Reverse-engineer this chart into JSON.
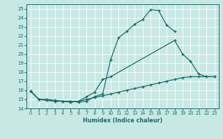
{
  "xlabel": "Humidex (Indice chaleur)",
  "xlim": [
    -0.5,
    23.5
  ],
  "ylim": [
    14.0,
    25.5
  ],
  "xticks": [
    0,
    1,
    2,
    3,
    4,
    5,
    6,
    7,
    8,
    9,
    10,
    11,
    12,
    13,
    14,
    15,
    16,
    17,
    18,
    19,
    20,
    21,
    22,
    23
  ],
  "yticks": [
    14,
    15,
    16,
    17,
    18,
    19,
    20,
    21,
    22,
    23,
    24,
    25
  ],
  "bg_color": "#c8e8e4",
  "line_color": "#1a6b6b",
  "grid_color": "#ffffff",
  "line1_x": [
    0,
    1,
    2,
    3,
    4,
    5,
    6,
    7,
    8,
    9,
    10,
    11,
    12,
    13,
    14,
    15,
    16,
    17,
    18
  ],
  "line1_y": [
    15.9,
    15.0,
    15.0,
    14.9,
    14.8,
    14.8,
    14.7,
    14.8,
    15.3,
    15.6,
    19.4,
    21.8,
    22.5,
    23.3,
    23.8,
    24.9,
    24.8,
    23.2,
    22.5
  ],
  "line2_x": [
    0,
    1,
    2,
    3,
    4,
    5,
    6,
    7,
    8,
    9,
    10,
    18,
    19,
    20,
    21,
    22,
    23
  ],
  "line2_y": [
    15.9,
    15.0,
    14.9,
    14.8,
    14.8,
    14.7,
    14.8,
    15.3,
    15.8,
    17.2,
    17.5,
    21.5,
    20.0,
    19.2,
    17.8,
    17.5,
    17.5
  ],
  "line2_break": 10,
  "line3_x": [
    0,
    1,
    2,
    3,
    4,
    5,
    6,
    7,
    8,
    9,
    10,
    11,
    12,
    13,
    14,
    15,
    16,
    17,
    18,
    19,
    20,
    21,
    22,
    23
  ],
  "line3_y": [
    15.9,
    15.0,
    14.9,
    14.8,
    14.8,
    14.7,
    14.8,
    15.0,
    15.2,
    15.4,
    15.6,
    15.8,
    16.0,
    16.2,
    16.4,
    16.6,
    16.8,
    17.0,
    17.2,
    17.4,
    17.5,
    17.5,
    17.5,
    17.5
  ]
}
